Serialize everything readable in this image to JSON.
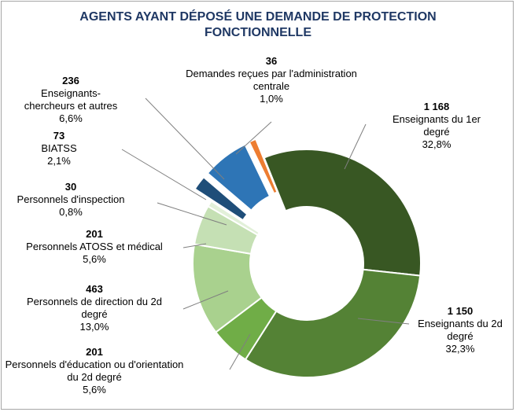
{
  "chart_data": {
    "type": "donut",
    "title": "AGENTS AYANT DÉPOSÉ UNE DEMANDE DE PROTECTION\nFONCTIONNELLE",
    "categories": [
      "Enseignants du 1er\ndegré",
      "Enseignants du 2d\ndegré",
      "Personnels d'éducation ou d'orientation\ndu 2d degré",
      "Personnels de direction du 2d\ndegré",
      "Personnels ATOSS et médical",
      "Personnels d'inspection",
      "BIATSS",
      "Enseignants-\nchercheurs et autres",
      "Demandes reçues par l'administration\ncentrale"
    ],
    "values": [
      1168,
      1150,
      201,
      463,
      201,
      30,
      73,
      236,
      36
    ],
    "value_labels": [
      "1 168",
      "1 150",
      "201",
      "463",
      "201",
      "30",
      "73",
      "236",
      "36"
    ],
    "percent_labels": [
      "32,8%",
      "32,3%",
      "5,6%",
      "13,0%",
      "5,6%",
      "0,8%",
      "2,1%",
      "6,6%",
      "1,0%"
    ],
    "colors": [
      "#385723",
      "#548235",
      "#70ad47",
      "#a9d18e",
      "#c5e0b4",
      "#e2f0d9",
      "#1f4e79",
      "#2e75b6",
      "#ed7d31"
    ],
    "exploded": [
      false,
      false,
      false,
      false,
      false,
      false,
      true,
      true,
      true
    ]
  }
}
